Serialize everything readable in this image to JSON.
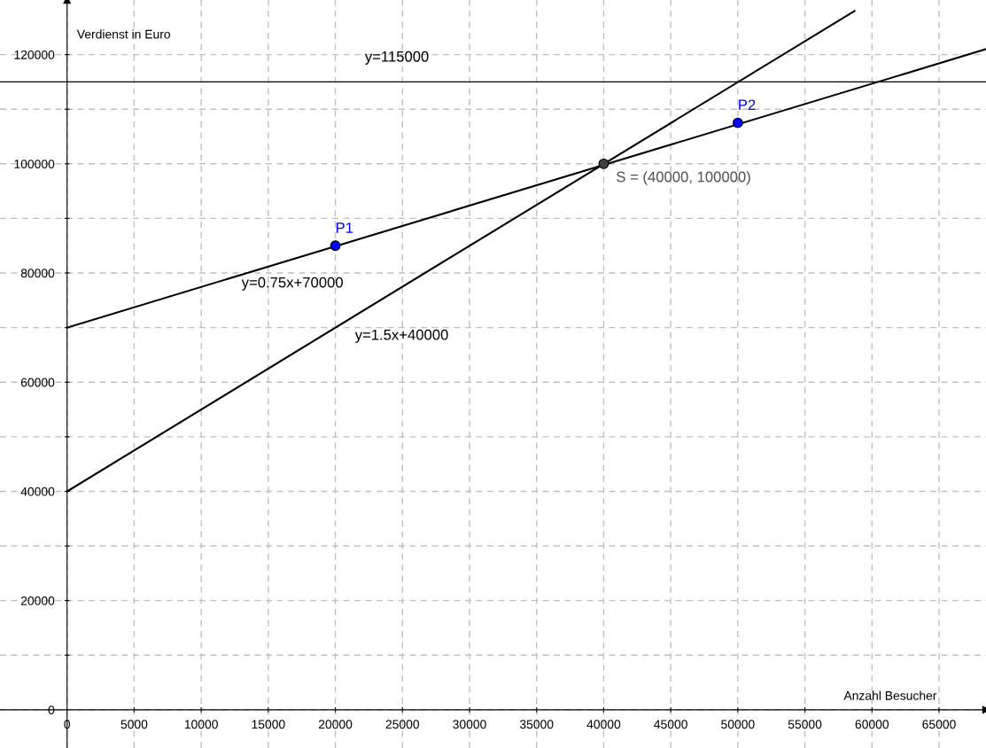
{
  "chart_data": {
    "type": "line",
    "xlabel": "Anzahl Besucher",
    "ylabel": "Verdienst in Euro",
    "xlim": [
      -5000,
      68500
    ],
    "ylim": [
      -7000,
      130000
    ],
    "xticks": [
      0,
      5000,
      10000,
      15000,
      20000,
      25000,
      30000,
      35000,
      40000,
      45000,
      50000,
      55000,
      60000,
      65000
    ],
    "yticks": [
      0,
      {
        "value": 10000,
        "label": null
      },
      20000,
      {
        "value": 30000,
        "label": null
      },
      40000,
      {
        "value": 50000,
        "label": null
      },
      60000,
      {
        "value": 70000,
        "label": null
      },
      80000,
      {
        "value": 90000,
        "label": null
      },
      100000,
      {
        "value": 110000,
        "label": null
      },
      120000
    ],
    "grid": true,
    "series": [
      {
        "color": "#000000",
        "x": [
          0,
          68500
        ],
        "values": [
          70000,
          121000
        ]
      },
      {
        "color": "#000000",
        "x": [
          0,
          58700
        ],
        "values": [
          40000,
          128000
        ]
      },
      {
        "type": "scatter",
        "name": "P1",
        "color": "#0000ff",
        "x": [
          20000
        ],
        "values": [
          85000
        ]
      },
      {
        "type": "scatter",
        "name": "P2",
        "color": "#0000ff",
        "x": [
          50000
        ],
        "values": [
          107500
        ]
      },
      {
        "type": "scatter",
        "name": "S = (40000, 100000)",
        "color": "#404040",
        "x": [
          40000
        ],
        "values": [
          100000
        ]
      }
    ],
    "ref_lines": [
      {
        "axis": "y",
        "value": 115000,
        "label": "y=115000",
        "color": "#000000",
        "line_style": "solid"
      }
    ],
    "annotations": [
      "y=0.75x+70000",
      "y=1.5x+40000"
    ]
  }
}
